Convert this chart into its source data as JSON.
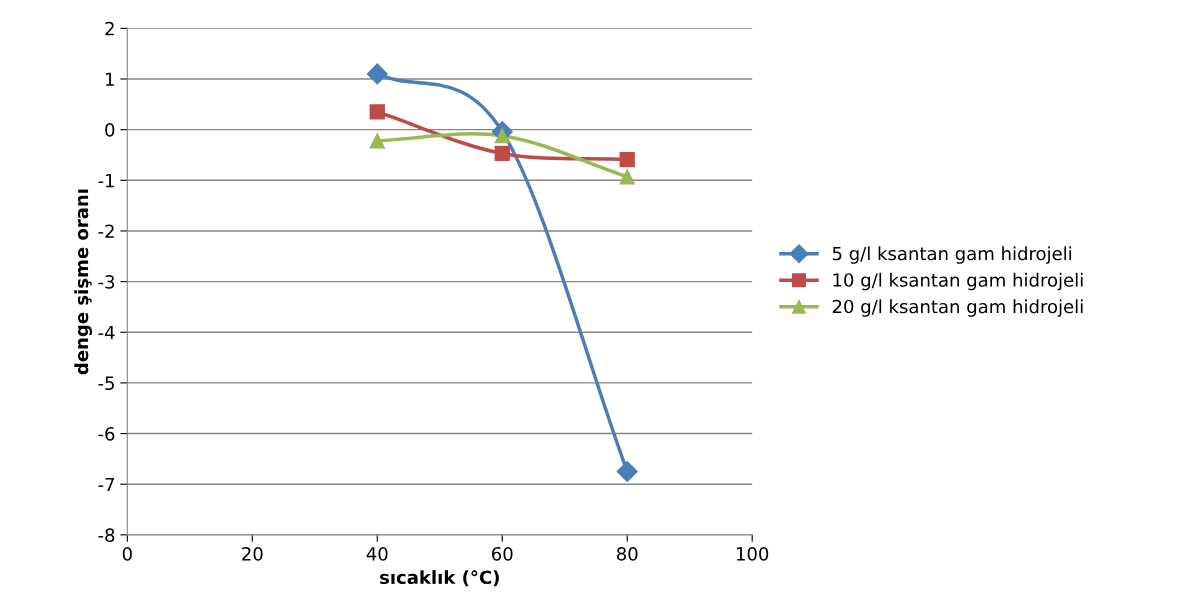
{
  "chart_data": {
    "type": "line",
    "xlabel": "sıcaklık (°C)",
    "ylabel": "denge şişme oranı",
    "xlim": [
      0,
      100
    ],
    "xticks": [
      0,
      20,
      40,
      60,
      80,
      100
    ],
    "ylim": [
      -8,
      2
    ],
    "yticks": [
      -8,
      -7,
      -6,
      -5,
      -4,
      -3,
      -2,
      -1,
      0,
      1,
      2
    ],
    "grid": "y",
    "legend": "right",
    "series": [
      {
        "name": "5 g/l ksantan gam hidrojeli",
        "color": "#4a7ebb",
        "marker": "diamond",
        "x": [
          40,
          60,
          80
        ],
        "values": [
          1.1,
          -0.04,
          -6.75
        ]
      },
      {
        "name": "10 g/l ksantan gam hidrojeli",
        "color": "#be4b48",
        "marker": "square",
        "x": [
          40,
          60,
          80
        ],
        "values": [
          0.35,
          -0.47,
          -0.59
        ]
      },
      {
        "name": "20 g/l ksantan gam hidrojeli",
        "color": "#98b954",
        "marker": "triangle",
        "x": [
          40,
          60,
          80
        ],
        "values": [
          -0.22,
          -0.12,
          -0.93
        ]
      }
    ]
  }
}
